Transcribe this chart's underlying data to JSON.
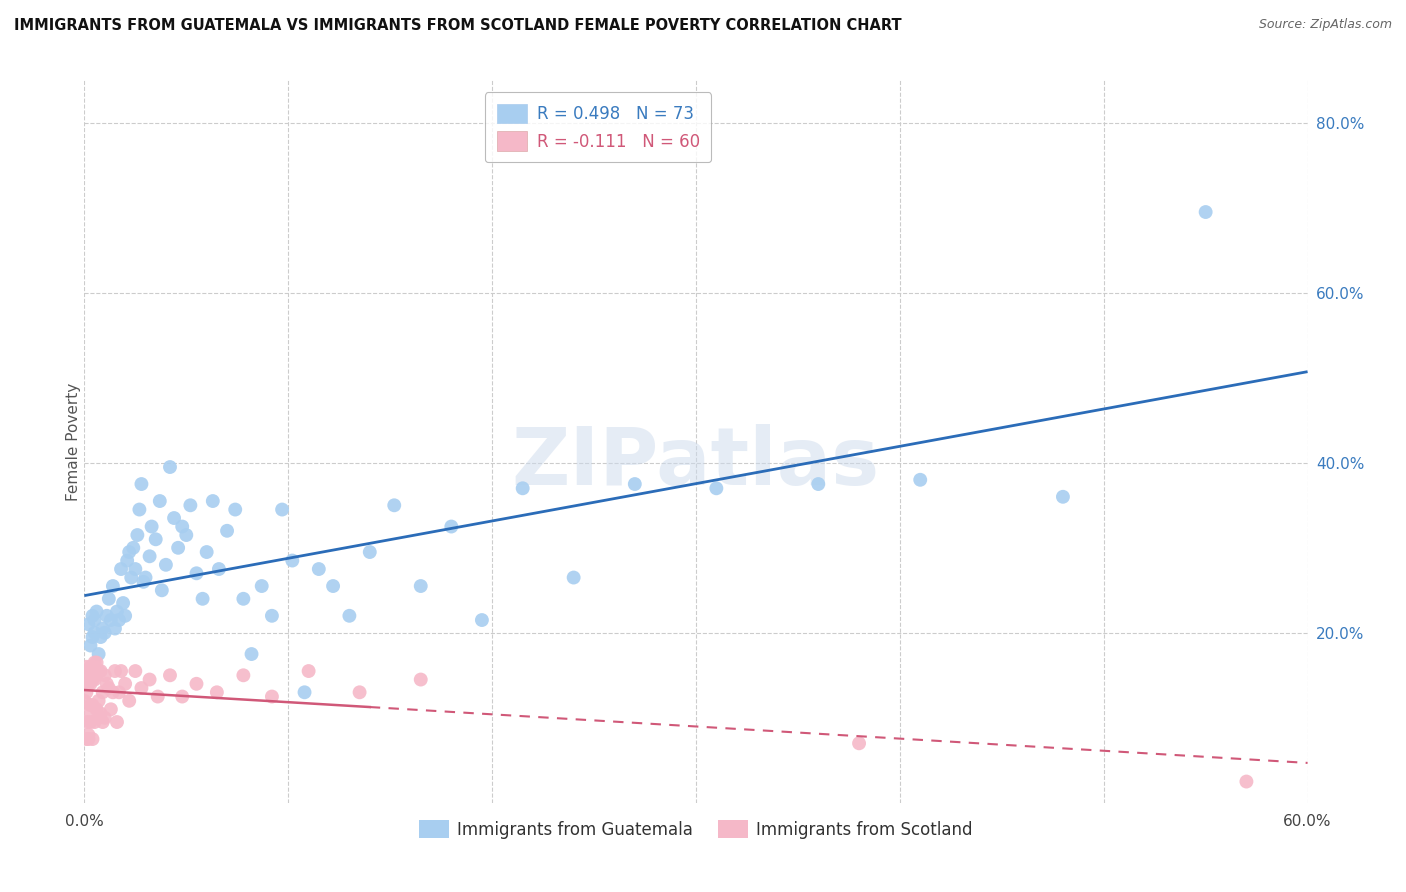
{
  "title": "IMMIGRANTS FROM GUATEMALA VS IMMIGRANTS FROM SCOTLAND FEMALE POVERTY CORRELATION CHART",
  "source": "Source: ZipAtlas.com",
  "ylabel": "Female Poverty",
  "xlim": [
    0.0,
    0.6
  ],
  "ylim": [
    0.0,
    0.85
  ],
  "background_color": "#ffffff",
  "grid_color": "#cccccc",
  "watermark": "ZIPatlas",
  "guatemala_color": "#a8cef0",
  "scotland_color": "#f5b8c8",
  "guatemala_line_color": "#2b6cb8",
  "scotland_line_color": "#d05878",
  "R_guatemala": 0.498,
  "N_guatemala": 73,
  "R_scotland": -0.111,
  "N_scotland": 60,
  "guatemala_x": [
    0.002,
    0.003,
    0.004,
    0.004,
    0.005,
    0.005,
    0.006,
    0.007,
    0.008,
    0.009,
    0.01,
    0.011,
    0.012,
    0.013,
    0.014,
    0.015,
    0.016,
    0.017,
    0.018,
    0.019,
    0.02,
    0.021,
    0.022,
    0.023,
    0.024,
    0.025,
    0.026,
    0.027,
    0.028,
    0.029,
    0.03,
    0.032,
    0.033,
    0.035,
    0.037,
    0.038,
    0.04,
    0.042,
    0.044,
    0.046,
    0.048,
    0.05,
    0.052,
    0.055,
    0.058,
    0.06,
    0.063,
    0.066,
    0.07,
    0.074,
    0.078,
    0.082,
    0.087,
    0.092,
    0.097,
    0.102,
    0.108,
    0.115,
    0.122,
    0.13,
    0.14,
    0.152,
    0.165,
    0.18,
    0.195,
    0.215,
    0.24,
    0.27,
    0.31,
    0.36,
    0.41,
    0.48,
    0.55
  ],
  "guatemala_y": [
    0.21,
    0.185,
    0.195,
    0.22,
    0.2,
    0.215,
    0.225,
    0.175,
    0.195,
    0.205,
    0.2,
    0.22,
    0.24,
    0.215,
    0.255,
    0.205,
    0.225,
    0.215,
    0.275,
    0.235,
    0.22,
    0.285,
    0.295,
    0.265,
    0.3,
    0.275,
    0.315,
    0.345,
    0.375,
    0.26,
    0.265,
    0.29,
    0.325,
    0.31,
    0.355,
    0.25,
    0.28,
    0.395,
    0.335,
    0.3,
    0.325,
    0.315,
    0.35,
    0.27,
    0.24,
    0.295,
    0.355,
    0.275,
    0.32,
    0.345,
    0.24,
    0.175,
    0.255,
    0.22,
    0.345,
    0.285,
    0.13,
    0.275,
    0.255,
    0.22,
    0.295,
    0.35,
    0.255,
    0.325,
    0.215,
    0.37,
    0.265,
    0.375,
    0.37,
    0.375,
    0.38,
    0.36,
    0.695
  ],
  "scotland_x": [
    0.0,
    0.0,
    0.001,
    0.001,
    0.001,
    0.001,
    0.001,
    0.002,
    0.002,
    0.002,
    0.002,
    0.002,
    0.003,
    0.003,
    0.003,
    0.003,
    0.003,
    0.004,
    0.004,
    0.004,
    0.004,
    0.005,
    0.005,
    0.005,
    0.006,
    0.006,
    0.006,
    0.007,
    0.007,
    0.008,
    0.008,
    0.009,
    0.009,
    0.01,
    0.01,
    0.011,
    0.012,
    0.013,
    0.014,
    0.015,
    0.016,
    0.017,
    0.018,
    0.02,
    0.022,
    0.025,
    0.028,
    0.032,
    0.036,
    0.042,
    0.048,
    0.055,
    0.065,
    0.078,
    0.092,
    0.11,
    0.135,
    0.165,
    0.38,
    0.57
  ],
  "scotland_y": [
    0.145,
    0.12,
    0.155,
    0.095,
    0.075,
    0.13,
    0.16,
    0.075,
    0.105,
    0.14,
    0.155,
    0.08,
    0.095,
    0.115,
    0.14,
    0.155,
    0.16,
    0.075,
    0.115,
    0.145,
    0.16,
    0.095,
    0.145,
    0.165,
    0.11,
    0.15,
    0.165,
    0.12,
    0.155,
    0.105,
    0.155,
    0.13,
    0.095,
    0.1,
    0.15,
    0.14,
    0.135,
    0.11,
    0.13,
    0.155,
    0.095,
    0.13,
    0.155,
    0.14,
    0.12,
    0.155,
    0.135,
    0.145,
    0.125,
    0.15,
    0.125,
    0.14,
    0.13,
    0.15,
    0.125,
    0.155,
    0.13,
    0.145,
    0.07,
    0.025
  ]
}
